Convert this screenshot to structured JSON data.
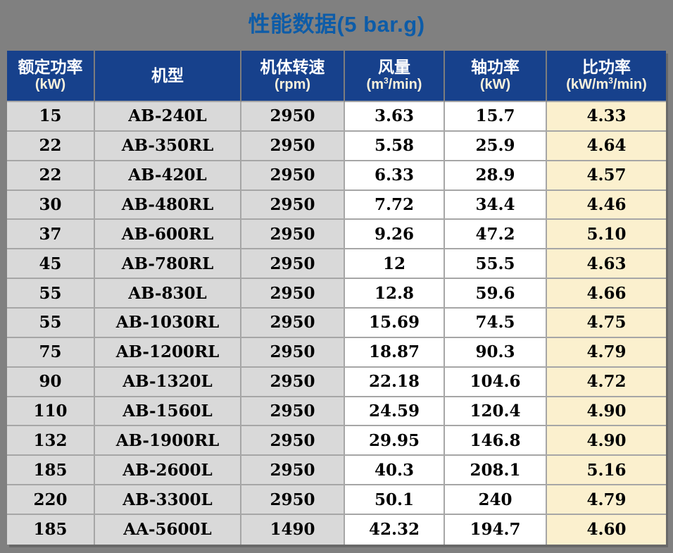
{
  "title": "性能数据(5 bar.g)",
  "table": {
    "columns": [
      {
        "label": "额定功率",
        "unit_pre": "(kW)",
        "unit_sup": "",
        "unit_post": ""
      },
      {
        "label": "机型",
        "unit_pre": "",
        "unit_sup": "",
        "unit_post": ""
      },
      {
        "label": "机体转速",
        "unit_pre": "(rpm)",
        "unit_sup": "",
        "unit_post": ""
      },
      {
        "label": "风量",
        "unit_pre": "(m",
        "unit_sup": "3",
        "unit_post": "/min)"
      },
      {
        "label": "轴功率",
        "unit_pre": "(kW)",
        "unit_sup": "",
        "unit_post": ""
      },
      {
        "label": "比功率",
        "unit_pre": "(kW/m",
        "unit_sup": "3",
        "unit_post": "/min)"
      }
    ],
    "rows": [
      [
        "15",
        "AB-240L",
        "2950",
        "3.63",
        "15.7",
        "4.33"
      ],
      [
        "22",
        "AB-350RL",
        "2950",
        "5.58",
        "25.9",
        "4.64"
      ],
      [
        "22",
        "AB-420L",
        "2950",
        "6.33",
        "28.9",
        "4.57"
      ],
      [
        "30",
        "AB-480RL",
        "2950",
        "7.72",
        "34.4",
        "4.46"
      ],
      [
        "37",
        "AB-600RL",
        "2950",
        "9.26",
        "47.2",
        "5.10"
      ],
      [
        "45",
        "AB-780RL",
        "2950",
        "12",
        "55.5",
        "4.63"
      ],
      [
        "55",
        "AB-830L",
        "2950",
        "12.8",
        "59.6",
        "4.66"
      ],
      [
        "55",
        "AB-1030RL",
        "2950",
        "15.69",
        "74.5",
        "4.75"
      ],
      [
        "75",
        "AB-1200RL",
        "2950",
        "18.87",
        "90.3",
        "4.79"
      ],
      [
        "90",
        "AB-1320L",
        "2950",
        "22.18",
        "104.6",
        "4.72"
      ],
      [
        "110",
        "AB-1560L",
        "2950",
        "24.59",
        "120.4",
        "4.90"
      ],
      [
        "132",
        "AB-1900RL",
        "2950",
        "29.95",
        "146.8",
        "4.90"
      ],
      [
        "185",
        "AB-2600L",
        "2950",
        "40.3",
        "208.1",
        "5.16"
      ],
      [
        "220",
        "AB-3300L",
        "2950",
        "50.1",
        "240",
        "4.79"
      ],
      [
        "185",
        "AA-5600L",
        "1490",
        "42.32",
        "194.7",
        "4.60"
      ]
    ]
  },
  "colors": {
    "page_background": "#808080",
    "title_text": "#0D5CA8",
    "header_background": "#17418C",
    "header_text": "#FFFFFF",
    "header_unit_text": "#F7F0DC",
    "column_gray": "#D9D9D9",
    "column_white": "#FFFFFF",
    "column_cream": "#FBF0CE",
    "grid_line": "#A6A6A6"
  }
}
